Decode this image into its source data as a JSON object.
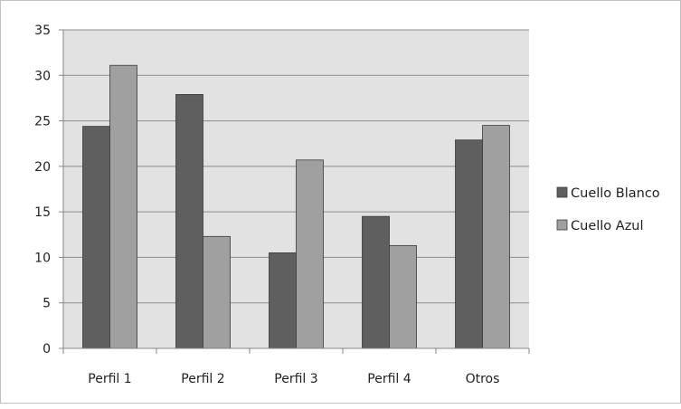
{
  "chart_data": {
    "type": "bar",
    "title": "",
    "xlabel": "",
    "ylabel": "",
    "categories": [
      "Perfil 1",
      "Perfil 2",
      "Perfil 3",
      "Perfil 4",
      "Otros"
    ],
    "series": [
      {
        "name": "Cuello Blanco",
        "values": [
          24.4,
          27.9,
          10.5,
          14.5,
          22.9
        ],
        "color": "#5f5f5f"
      },
      {
        "name": "Cuello Azul",
        "values": [
          31.1,
          12.3,
          20.7,
          11.3,
          24.5
        ],
        "color": "#a0a0a0"
      }
    ],
    "ylim": [
      0,
      35
    ],
    "yticks": [
      "0",
      "5",
      "10",
      "15",
      "20",
      "25",
      "30",
      "35"
    ],
    "grid": true,
    "legend": "right",
    "plot_background": "#e2e2e2"
  }
}
